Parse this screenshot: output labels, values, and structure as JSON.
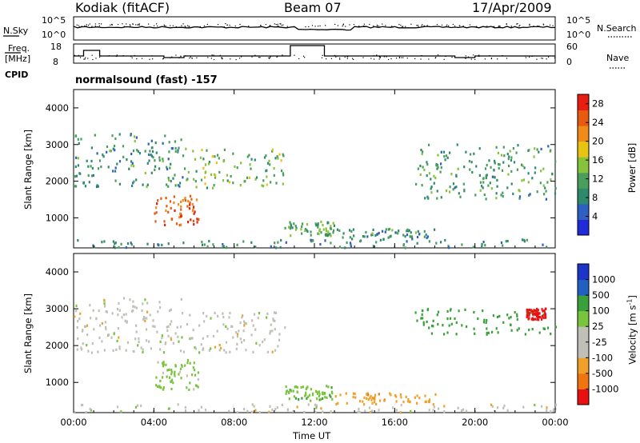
{
  "header": {
    "station": "Kodiak (fitACF)",
    "beam": "Beam 07",
    "date": "17/Apr/2009"
  },
  "top_panels": {
    "nsky_label": "N.Sky",
    "nsky_ticks": [
      "10^5",
      "10^0"
    ],
    "nsearch_label": "N.Search",
    "nsearch_ticks": [
      "10^5",
      "10^0"
    ],
    "freq_label_1": "Freq.",
    "freq_label_2": "[MHz]",
    "freq_ticks": [
      "18",
      "8"
    ],
    "nave_label": "Nave",
    "nave_ticks": [
      "60",
      "0"
    ],
    "cpid_label": "CPID",
    "cpid_value": "normalsound (fast) -157"
  },
  "x_axis": {
    "label": "Time UT",
    "ticks": [
      "00:00",
      "04:00",
      "08:00",
      "12:00",
      "16:00",
      "20:00",
      "00:00"
    ]
  },
  "colors": {
    "power_scale": [
      "#1f2ad9",
      "#2f5fc0",
      "#2e8a6c",
      "#4a9e5c",
      "#86c23a",
      "#e8c412",
      "#f08a18",
      "#e85a10",
      "#e81e10"
    ],
    "velocity_scale": [
      "#e81010",
      "#f07410",
      "#f0a028",
      "#c0c0b8",
      "#c0c0b8",
      "#78c43c",
      "#3aa03a",
      "#2060c0",
      "#1c34c8"
    ]
  },
  "chart_data": [
    {
      "type": "heatmap",
      "title": "",
      "xlabel": "Time UT",
      "ylabel": "Slant Range [km]",
      "yticks": [
        "1000",
        "2000",
        "3000",
        "4000"
      ],
      "xlim": [
        "00:00",
        "24:00"
      ],
      "ylim": [
        180,
        4500
      ],
      "colorbar": {
        "label": "Power [dB]",
        "ticks": [
          "4",
          "8",
          "12",
          "16",
          "20",
          "24",
          "28"
        ],
        "range": [
          0,
          30
        ]
      },
      "echo_regions": [
        {
          "t_start": 0.0,
          "t_end": 5.5,
          "r_min": 1800,
          "r_max": 3300,
          "value": 9
        },
        {
          "t_start": 4.0,
          "t_end": 6.2,
          "r_min": 800,
          "r_max": 1600,
          "value": 26
        },
        {
          "t_start": 5.5,
          "t_end": 10.5,
          "r_min": 1800,
          "r_max": 2900,
          "value": 13
        },
        {
          "t_start": 10.5,
          "t_end": 13.0,
          "r_min": 500,
          "r_max": 900,
          "value": 11
        },
        {
          "t_start": 13.0,
          "t_end": 18.0,
          "r_min": 400,
          "r_max": 700,
          "value": 9
        },
        {
          "t_start": 17.0,
          "t_end": 24.0,
          "r_min": 1500,
          "r_max": 3000,
          "value": 10
        },
        {
          "t_start": 0.0,
          "t_end": 24.0,
          "r_min": 180,
          "r_max": 400,
          "value": 8
        }
      ]
    },
    {
      "type": "heatmap",
      "title": "",
      "xlabel": "Time UT",
      "ylabel": "Slant Range [km]",
      "yticks": [
        "1000",
        "2000",
        "3000",
        "4000"
      ],
      "xlim": [
        "00:00",
        "24:00"
      ],
      "ylim": [
        180,
        4500
      ],
      "colorbar": {
        "label": "Velocity [m s-1]",
        "ticks": [
          "1000",
          "500",
          "100",
          "25",
          "-25",
          "-100",
          "-500",
          "-1000"
        ],
        "range": [
          -1000,
          1000
        ]
      },
      "echo_regions": [
        {
          "t_start": 0.0,
          "t_end": 5.5,
          "r_min": 1800,
          "r_max": 3300,
          "value": 0
        },
        {
          "t_start": 4.0,
          "t_end": 6.2,
          "r_min": 800,
          "r_max": 1600,
          "value": 50
        },
        {
          "t_start": 5.5,
          "t_end": 10.5,
          "r_min": 1800,
          "r_max": 2900,
          "value": 0
        },
        {
          "t_start": 10.5,
          "t_end": 13.0,
          "r_min": 500,
          "r_max": 900,
          "value": 80
        },
        {
          "t_start": 13.0,
          "t_end": 18.0,
          "r_min": 400,
          "r_max": 700,
          "value": -80
        },
        {
          "t_start": 17.0,
          "t_end": 24.0,
          "r_min": 2300,
          "r_max": 3000,
          "value": 300
        },
        {
          "t_start": 22.5,
          "t_end": 23.5,
          "r_min": 2700,
          "r_max": 3000,
          "value": -600
        },
        {
          "t_start": 0.0,
          "t_end": 24.0,
          "r_min": 180,
          "r_max": 400,
          "value": 0
        }
      ]
    }
  ]
}
